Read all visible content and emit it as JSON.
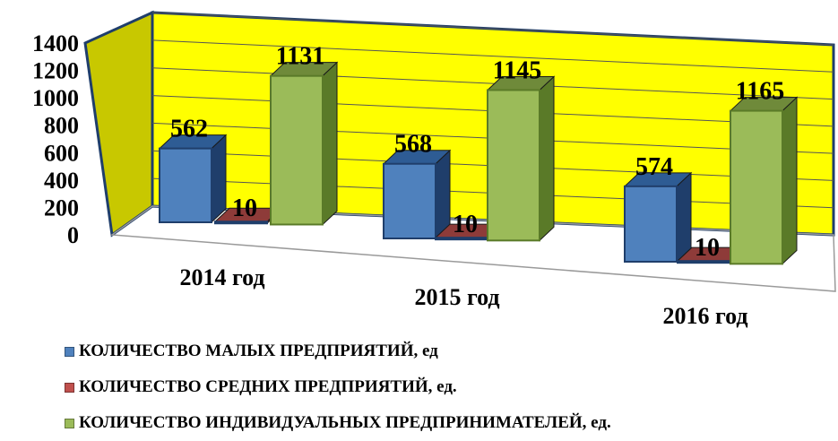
{
  "chart_data": {
    "type": "bar",
    "categories": [
      "2014 год",
      "2015 год",
      "2016 год"
    ],
    "series": [
      {
        "name": "КОЛИЧЕСТВО МАЛЫХ ПРЕДПРИЯТИЙ, ед",
        "values": [
          562,
          568,
          574
        ],
        "color": "#4F81BD",
        "top": "#2E5C94",
        "side": "#1F3E6B"
      },
      {
        "name": "КОЛИЧЕСТВО СРЕДНИХ ПРЕДПРИЯТИЙ, ед.",
        "values": [
          10,
          10,
          10
        ],
        "color": "#C0504D",
        "top": "#8E3B39",
        "side": "#7A2F2D"
      },
      {
        "name": "КОЛИЧЕСТВО ИНДИВИДУАЛЬНЫХ ПРЕДПРИНИМАТЕЛЕЙ, ед.",
        "values": [
          1131,
          1145,
          1165
        ],
        "color": "#9BBB59",
        "top": "#6F8A3A",
        "side": "#5A7A28"
      }
    ],
    "data_labels": [
      [
        "562",
        "10",
        "1131"
      ],
      [
        "568",
        "10",
        "1145"
      ],
      [
        "574",
        "10",
        "1165"
      ]
    ],
    "y_ticks": [
      "0",
      "200",
      "400",
      "600",
      "800",
      "1000",
      "1200",
      "1400"
    ],
    "ylim": [
      0,
      1400
    ],
    "grid": true,
    "legend_position": "bottom",
    "colors": {
      "back_wall": "#FFFF00",
      "side_wall": "#C8C800",
      "frame": "#1F3E6B"
    }
  }
}
